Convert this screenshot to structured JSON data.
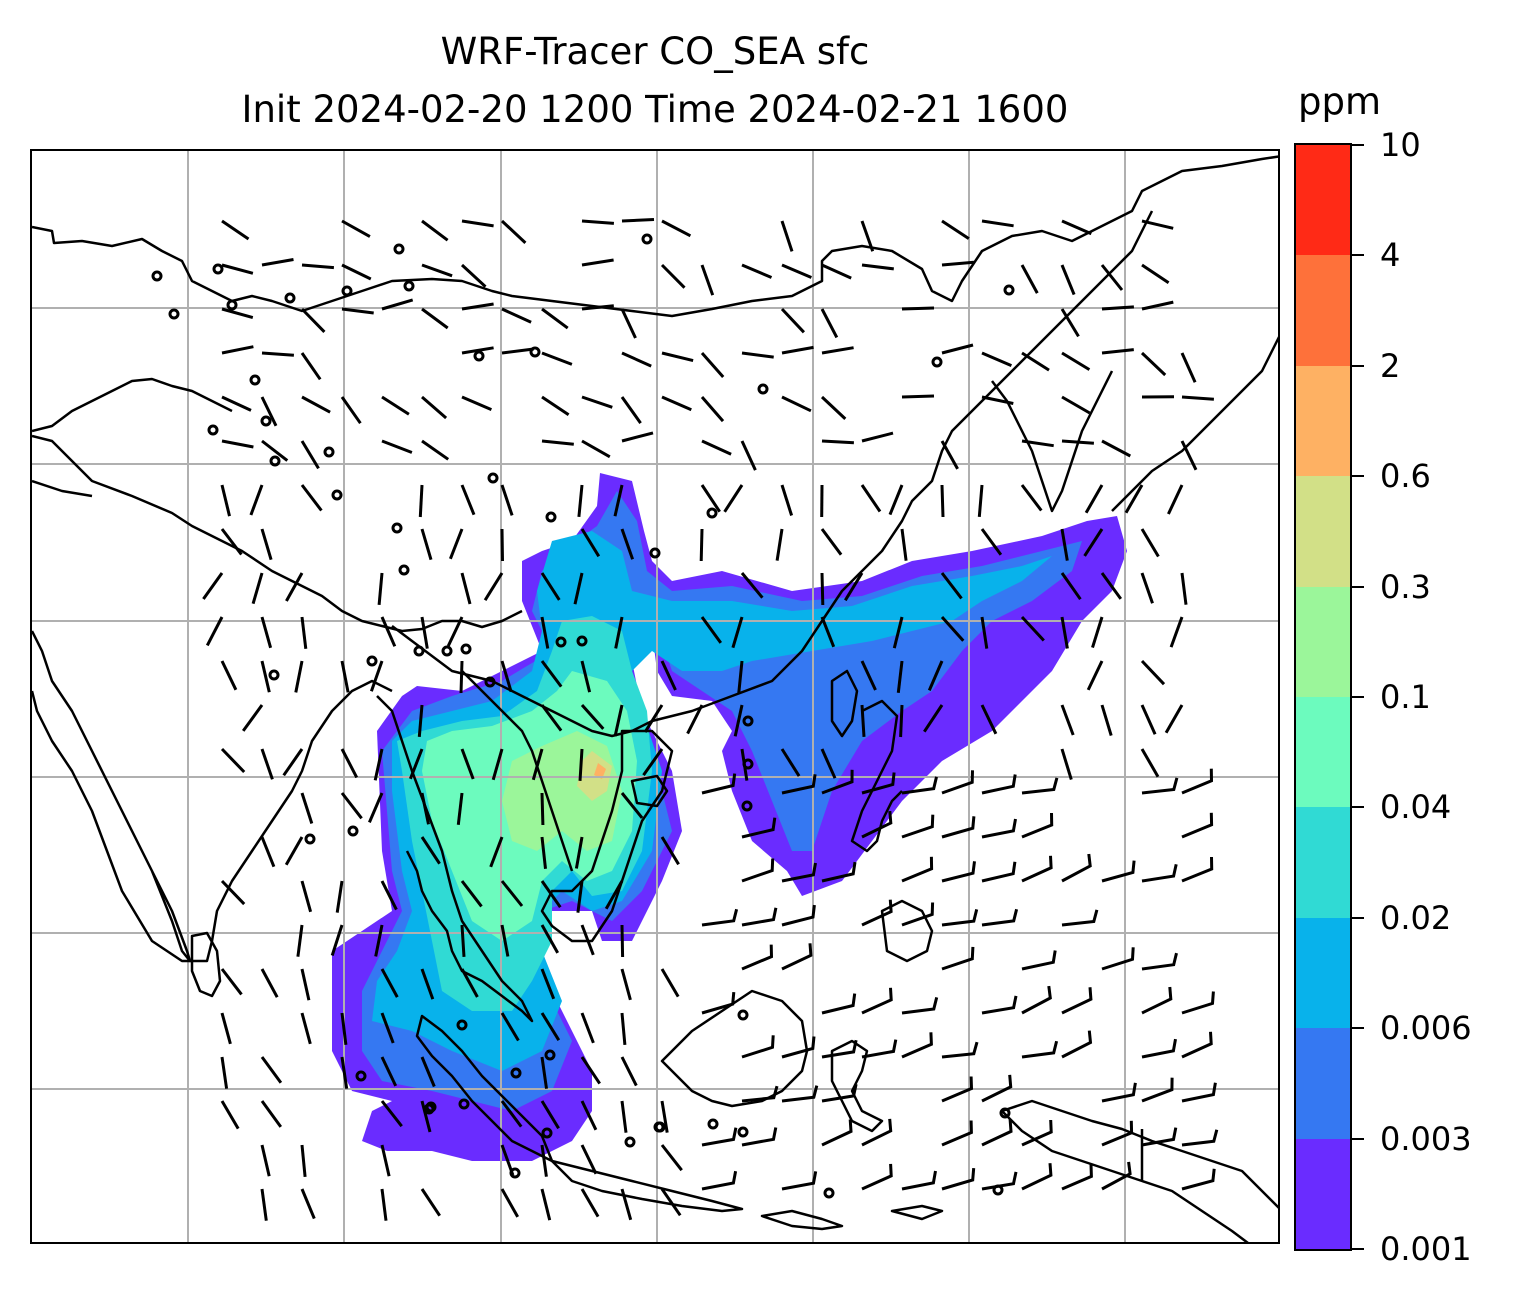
{
  "title": {
    "line1": "WRF-Tracer CO_SEA sfc",
    "line2": "Init 2024-02-20 1200 Time 2024-02-21 1600"
  },
  "colorbar": {
    "unit": "ppm",
    "ticks": [
      "0.001",
      "0.003",
      "0.006",
      "0.02",
      "0.04",
      "0.1",
      "0.3",
      "0.6",
      "2",
      "4",
      "10"
    ],
    "colors": [
      "#6a2cff",
      "#3578f2",
      "#08b2eb",
      "#30dad4",
      "#6cfbbe",
      "#9bf69a",
      "#d2e087",
      "#feb163",
      "#fe713a",
      "#ff2a16"
    ]
  },
  "map": {
    "background": "#ffffff",
    "coastline_color": "#000000",
    "gridline_color": "#b0b0b0",
    "barb_color": "#000000",
    "features": [
      "coastlines",
      "country-borders",
      "gridlines",
      "wind-barbs",
      "calm-wind-circles",
      "co-tracer-shading"
    ],
    "tracer": "CO_SEA",
    "level": "sfc"
  }
}
